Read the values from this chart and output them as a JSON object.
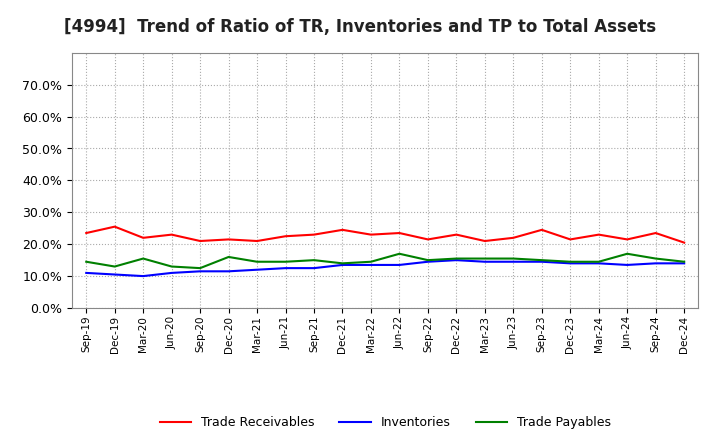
{
  "title": "[4994]  Trend of Ratio of TR, Inventories and TP to Total Assets",
  "x_labels": [
    "Sep-19",
    "Dec-19",
    "Mar-20",
    "Jun-20",
    "Sep-20",
    "Dec-20",
    "Mar-21",
    "Jun-21",
    "Sep-21",
    "Dec-21",
    "Mar-22",
    "Jun-22",
    "Sep-22",
    "Dec-22",
    "Mar-23",
    "Jun-23",
    "Sep-23",
    "Dec-23",
    "Mar-24",
    "Jun-24",
    "Sep-24",
    "Dec-24"
  ],
  "trade_receivables": [
    0.235,
    0.255,
    0.22,
    0.23,
    0.21,
    0.215,
    0.21,
    0.225,
    0.23,
    0.245,
    0.23,
    0.235,
    0.215,
    0.23,
    0.21,
    0.22,
    0.245,
    0.215,
    0.23,
    0.215,
    0.235,
    0.205
  ],
  "inventories": [
    0.11,
    0.105,
    0.1,
    0.11,
    0.115,
    0.115,
    0.12,
    0.125,
    0.125,
    0.135,
    0.135,
    0.135,
    0.145,
    0.15,
    0.145,
    0.145,
    0.145,
    0.14,
    0.14,
    0.135,
    0.14,
    0.14
  ],
  "trade_payables": [
    0.145,
    0.13,
    0.155,
    0.13,
    0.125,
    0.16,
    0.145,
    0.145,
    0.15,
    0.14,
    0.145,
    0.17,
    0.15,
    0.155,
    0.155,
    0.155,
    0.15,
    0.145,
    0.145,
    0.17,
    0.155,
    0.145
  ],
  "tr_color": "#ff0000",
  "inv_color": "#0000ff",
  "tp_color": "#008000",
  "ylim": [
    0.0,
    0.8
  ],
  "yticks": [
    0.0,
    0.1,
    0.2,
    0.3,
    0.4,
    0.5,
    0.6,
    0.7
  ],
  "background_color": "#ffffff",
  "grid_color": "#aaaaaa",
  "title_fontsize": 12,
  "legend_labels": [
    "Trade Receivables",
    "Inventories",
    "Trade Payables"
  ]
}
